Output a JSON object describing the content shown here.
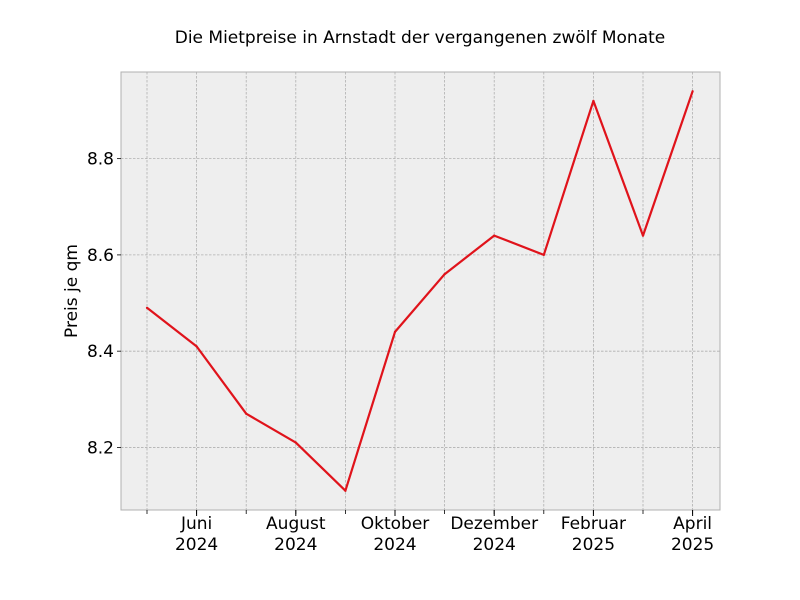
{
  "chart_data": {
    "type": "line",
    "title": "Die Mietpreise in Arnstadt der vergangenen zwölf Monate",
    "xlabel": "",
    "ylabel": "Preis je qm",
    "x": [
      "2024-05",
      "2024-06",
      "2024-07",
      "2024-08",
      "2024-09",
      "2024-10",
      "2024-11",
      "2024-12",
      "2025-01",
      "2025-02",
      "2025-03",
      "2025-04"
    ],
    "x_tick_labels": [
      {
        "month": "Juni",
        "year": "2024"
      },
      {
        "month": "August",
        "year": "2024"
      },
      {
        "month": "Oktober",
        "year": "2024"
      },
      {
        "month": "Dezember",
        "year": "2024"
      },
      {
        "month": "Februar",
        "year": "2025"
      },
      {
        "month": "April",
        "year": "2025"
      }
    ],
    "series": [
      {
        "values": [
          8.49,
          8.41,
          8.27,
          8.21,
          8.11,
          8.44,
          8.56,
          8.64,
          8.6,
          8.92,
          8.64,
          8.94
        ],
        "color": "#e0131b"
      }
    ],
    "y_ticks": [
      "8.2",
      "8.4",
      "8.6",
      "8.8"
    ],
    "ylim": [
      8.07,
      8.98
    ],
    "grid": true,
    "background": "#eeeeee"
  }
}
